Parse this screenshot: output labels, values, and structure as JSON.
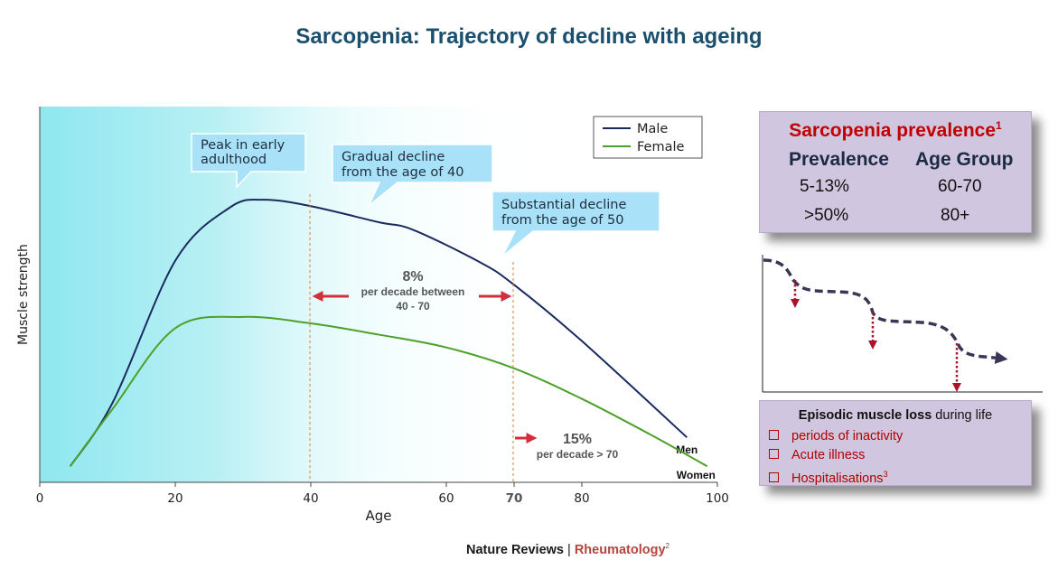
{
  "title": "Sarcopenia: Trajectory of decline with ageing",
  "chart_data": {
    "type": "line",
    "xlabel": "Age",
    "ylabel": "Muscle strength",
    "xlim": [
      0,
      100
    ],
    "xticks": [
      "0",
      "20",
      "40",
      "60",
      "70",
      "80",
      "100"
    ],
    "legend": {
      "position": "top-right",
      "entries": [
        "Male",
        "Female"
      ]
    },
    "series": [
      {
        "name": "Male",
        "end_label": "Men",
        "color": "#1b2a5e",
        "x": [
          4.5,
          10.8,
          20,
          28,
          33,
          40,
          50,
          55,
          65,
          70,
          80,
          95.5
        ],
        "y": [
          0.5,
          2.5,
          6.9,
          8.55,
          8.8,
          8.6,
          8.1,
          7.87,
          6.85,
          6.15,
          4.4,
          1.4
        ]
      },
      {
        "name": "Female",
        "end_label": "Women",
        "color": "#4da12a",
        "x": [
          4.5,
          10.8,
          20,
          30,
          40,
          50,
          60,
          70,
          80,
          90,
          98.5
        ],
        "y": [
          0.5,
          2.3,
          4.8,
          5.15,
          4.95,
          4.6,
          4.2,
          3.55,
          2.6,
          1.5,
          0.5
        ]
      }
    ],
    "callouts": [
      {
        "line1": "Peak in early",
        "line2": "adulthood"
      },
      {
        "line1": "Gradual decline",
        "line2": "from the age of 40"
      },
      {
        "line1": "Substantial decline",
        "line2": "from the age of 50"
      }
    ],
    "annotations": {
      "rate_40_70": {
        "value": "8%",
        "line1": "per decade between",
        "line2": "40 - 70"
      },
      "rate_over_70": {
        "value": "15%",
        "line1": "per decade > 70"
      }
    }
  },
  "prevalence": {
    "title": "Sarcopenia prevalence",
    "title_sup": "1",
    "col_prevalence": "Prevalence",
    "col_age_group": "Age Group",
    "rows": [
      {
        "prevalence": "5-13%",
        "age_group": "60-70"
      },
      {
        "prevalence": ">50%",
        "age_group": "80+"
      }
    ]
  },
  "episodic": {
    "title_bold": "Episodic muscle loss",
    "title_rest": " during life",
    "items": [
      "periods of inactivity",
      "Acute illness",
      "Hospitalisations"
    ],
    "last_sup": "3"
  },
  "source": {
    "publisher": "Nature Reviews",
    "separator": " | ",
    "journal": "Rheumatology",
    "sup": "2"
  },
  "colors": {
    "title": "#1a4f6e",
    "male": "#1b2a5e",
    "female": "#4da12a",
    "arrow": "#d32f3a",
    "panel": "#d0c6df",
    "alert": "#c00000"
  }
}
